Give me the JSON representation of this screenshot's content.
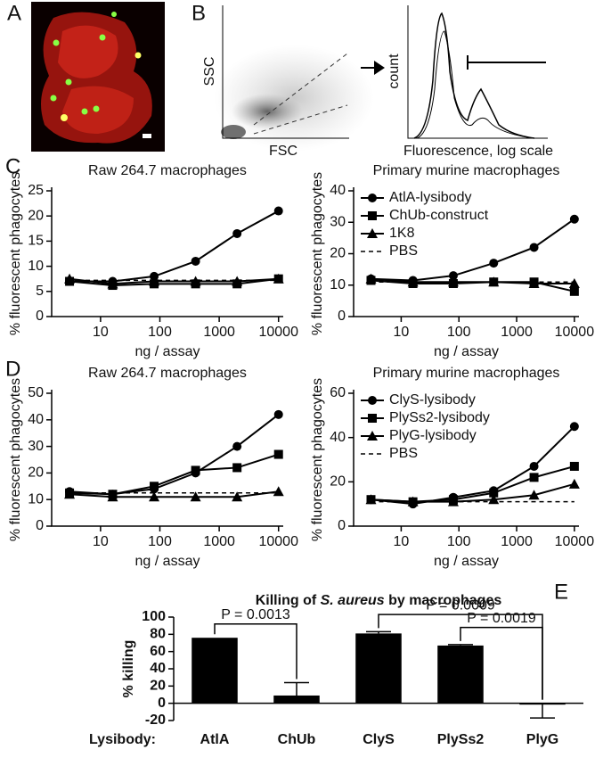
{
  "panel_labels": [
    "A",
    "B",
    "C",
    "D",
    "E"
  ],
  "panel_b": {
    "scatter_ylabel": "SSC",
    "scatter_xlabel": "FSC",
    "hist_ylabel": "count",
    "hist_xlabel": "Fluorescence, log scale"
  },
  "chart_data": [
    {
      "type": "line",
      "title": "Raw 264.7 macrophages",
      "xlabel": "ng / assay",
      "ylabel": "% fluorescent phagocytes",
      "log_x": true,
      "x": [
        3,
        16,
        80,
        400,
        2000,
        10000
      ],
      "xlim": [
        1.5,
        12000
      ],
      "xticks": [
        10,
        100,
        1000,
        10000
      ],
      "ylim": [
        0,
        25
      ],
      "yticks": [
        0,
        5,
        10,
        15,
        20,
        25
      ],
      "series": [
        {
          "marker": "circle",
          "dash": false,
          "color": "#000000",
          "values": [
            7,
            7,
            8,
            11,
            16.5,
            21
          ]
        },
        {
          "marker": "square",
          "dash": false,
          "color": "#000000",
          "values": [
            7,
            6.2,
            6.5,
            6.5,
            6.5,
            7.5
          ]
        },
        {
          "marker": "triangle",
          "dash": false,
          "color": "#000000",
          "values": [
            7.5,
            6.5,
            7,
            7,
            7,
            7.5
          ]
        },
        {
          "marker": null,
          "dash": true,
          "color": "#000000",
          "values": [
            7.2,
            7.2,
            7.2,
            7.2,
            7.2,
            7.2
          ]
        }
      ]
    },
    {
      "type": "line",
      "title": "Primary murine macrophages",
      "xlabel": "ng / assay",
      "ylabel": "% fluorescent phagocytes",
      "log_x": true,
      "x": [
        3,
        16,
        80,
        400,
        2000,
        10000
      ],
      "xlim": [
        1.5,
        12000
      ],
      "xticks": [
        10,
        100,
        1000,
        10000
      ],
      "ylim": [
        0,
        40
      ],
      "yticks": [
        0,
        10,
        20,
        30,
        40
      ],
      "legend": "upper left",
      "series": [
        {
          "name": "AtlA-lysibody",
          "marker": "circle",
          "dash": false,
          "color": "#000000",
          "values": [
            12,
            11.5,
            13,
            17,
            22,
            31
          ]
        },
        {
          "name": "ChUb-construct",
          "marker": "square",
          "dash": false,
          "color": "#000000",
          "values": [
            11.5,
            10.5,
            10.5,
            11,
            11,
            8
          ]
        },
        {
          "name": "1K8",
          "marker": "triangle",
          "dash": false,
          "color": "#000000",
          "values": [
            12,
            11,
            11,
            11,
            10.5,
            10.5
          ]
        },
        {
          "name": "PBS",
          "marker": null,
          "dash": true,
          "color": "#000000",
          "values": [
            11,
            11,
            11,
            11,
            11,
            11
          ]
        }
      ]
    },
    {
      "type": "line",
      "title": "Raw 264.7 macrophages",
      "xlabel": "ng / assay",
      "ylabel": "% fluorescent phagocytes",
      "log_x": true,
      "x": [
        3,
        16,
        80,
        400,
        2000,
        10000
      ],
      "xlim": [
        1.5,
        12000
      ],
      "xticks": [
        10,
        100,
        1000,
        10000
      ],
      "ylim": [
        0,
        50
      ],
      "yticks": [
        0,
        10,
        20,
        30,
        40,
        50
      ],
      "series": [
        {
          "marker": "circle",
          "dash": false,
          "color": "#000000",
          "values": [
            13,
            12,
            14,
            20,
            30,
            42
          ]
        },
        {
          "marker": "square",
          "dash": false,
          "color": "#000000",
          "values": [
            12.5,
            12,
            15,
            21,
            22,
            27
          ]
        },
        {
          "marker": "triangle",
          "dash": false,
          "color": "#000000",
          "values": [
            12,
            11,
            11,
            11,
            11,
            13
          ]
        },
        {
          "marker": null,
          "dash": true,
          "color": "#000000",
          "values": [
            12.5,
            12.5,
            12.5,
            12.5,
            12.5,
            12.5
          ]
        }
      ]
    },
    {
      "type": "line",
      "title": "Primary murine macrophages",
      "xlabel": "ng / assay",
      "ylabel": "% fluorescent phagocytes",
      "log_x": true,
      "x": [
        3,
        16,
        80,
        400,
        2000,
        10000
      ],
      "xlim": [
        1.5,
        12000
      ],
      "xticks": [
        10,
        100,
        1000,
        10000
      ],
      "ylim": [
        0,
        60
      ],
      "yticks": [
        0,
        20,
        40,
        60
      ],
      "legend": "upper left",
      "series": [
        {
          "name": "ClyS-lysibody",
          "marker": "circle",
          "dash": false,
          "color": "#000000",
          "values": [
            12,
            10,
            13,
            16,
            27,
            45
          ]
        },
        {
          "name": "PlySs2-lysibody",
          "marker": "square",
          "dash": false,
          "color": "#000000",
          "values": [
            12,
            11,
            12,
            15,
            22,
            27
          ]
        },
        {
          "name": "PlyG-lysibody",
          "marker": "triangle",
          "dash": false,
          "color": "#000000",
          "values": [
            12,
            11,
            11,
            12,
            14,
            19
          ]
        },
        {
          "name": "PBS",
          "marker": null,
          "dash": true,
          "color": "#000000",
          "values": [
            11,
            11,
            11,
            11,
            11,
            11
          ]
        }
      ]
    },
    {
      "type": "bar",
      "title_parts": [
        "Killing of ",
        "S. aureus",
        " by macrophages"
      ],
      "ylabel": "% killing",
      "category_title": "Lysibody:",
      "categories": [
        "AtlA",
        "ChUb",
        "ClyS",
        "PlySs2",
        "PlyG"
      ],
      "values": [
        76,
        9,
        81,
        67,
        -1
      ],
      "errors": [
        null,
        15,
        2,
        1,
        16
      ],
      "color": "#000000",
      "ylim": [
        -20,
        100
      ],
      "yticks": [
        -20,
        0,
        20,
        40,
        60,
        80,
        100
      ],
      "annotations": [
        {
          "text": "P = 0.0013",
          "from": 0,
          "to": 1
        },
        {
          "text": "P = 0.0009",
          "from": 2,
          "to": 4
        },
        {
          "text": "P = 0.0019",
          "from": 3,
          "to": 4
        }
      ]
    }
  ]
}
